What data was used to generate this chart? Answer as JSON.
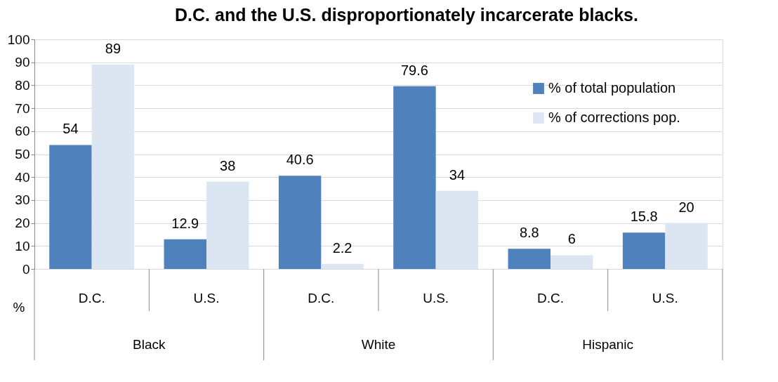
{
  "chart_data": {
    "type": "bar",
    "title": "D.C. and the U.S. disproportionately incarcerate blacks.",
    "ylabel": "%",
    "categories": [
      "D.C.",
      "U.S.",
      "D.C.",
      "U.S.",
      "D.C.",
      "U.S."
    ],
    "series": [
      {
        "name": "% of total population",
        "color": "#4f81bd",
        "values": [
          54,
          12.9,
          40.6,
          79.6,
          8.8,
          15.8
        ]
      },
      {
        "name": "% of corrections pop.",
        "color": "#dce6f2",
        "values": [
          89,
          38,
          2.2,
          34,
          6,
          20
        ]
      }
    ],
    "annotations": [
      "Black",
      "White",
      "Hispanic"
    ],
    "ylim": [
      0,
      100
    ],
    "yticks": [
      0,
      10,
      20,
      30,
      40,
      50,
      60,
      70,
      80,
      90,
      100
    ],
    "grid": "y",
    "legend": "top right",
    "data_labels": true
  }
}
